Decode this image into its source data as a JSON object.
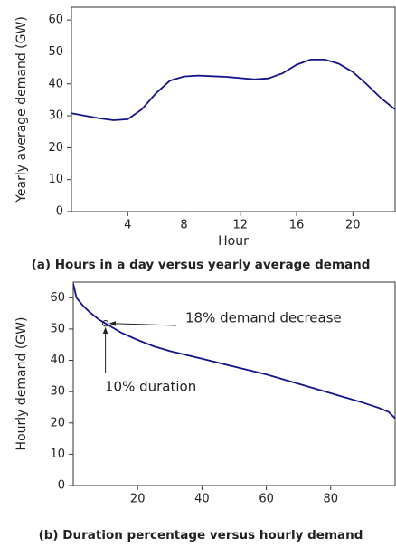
{
  "chart_data": [
    {
      "type": "line",
      "xlabel": "Hour",
      "ylabel": "Yearly average demand (GW)",
      "caption": "(a) Hours in a day versus yearly average demand",
      "xlim": [
        0,
        23
      ],
      "ylim": [
        0,
        64
      ],
      "xticks": [
        4,
        8,
        12,
        16,
        20
      ],
      "yticks": [
        0,
        10,
        20,
        30,
        40,
        50,
        60
      ],
      "series": [
        {
          "color": "#14148a",
          "x": [
            0,
            1,
            2,
            3,
            4,
            5,
            6,
            7,
            8,
            9,
            10,
            11,
            12,
            13,
            14,
            15,
            16,
            17,
            18,
            19,
            20,
            21,
            22,
            23
          ],
          "values": [
            30.8,
            30,
            29.2,
            28.6,
            28.9,
            32,
            37,
            41,
            42.3,
            42.6,
            42.4,
            42.2,
            41.8,
            41.4,
            41.7,
            43.3,
            46,
            47.6,
            47.6,
            46.3,
            43.7,
            39.8,
            35.5,
            32
          ]
        }
      ]
    },
    {
      "type": "line",
      "ylabel": "Hourly demand (GW)",
      "caption": "(b) Duration percentage versus hourly demand",
      "xlim": [
        0,
        100
      ],
      "ylim": [
        0,
        65
      ],
      "xticks": [
        20,
        40,
        60,
        80
      ],
      "yticks": [
        0,
        10,
        20,
        30,
        40,
        50,
        60
      ],
      "series": [
        {
          "color": "#14148a",
          "x": [
            0,
            1,
            3,
            5,
            8,
            10,
            15,
            20,
            25,
            30,
            40,
            50,
            60,
            70,
            80,
            90,
            95,
            98,
            100
          ],
          "values": [
            64.5,
            60,
            57.5,
            55.5,
            53,
            51.8,
            48.8,
            46.5,
            44.5,
            43,
            40.5,
            38,
            35.5,
            32.5,
            29.5,
            26.5,
            24.8,
            23.5,
            21.5
          ]
        }
      ],
      "highlight": {
        "x": 10,
        "y": 51.8
      },
      "annotations": [
        "18% demand decrease",
        "10% duration"
      ]
    }
  ]
}
